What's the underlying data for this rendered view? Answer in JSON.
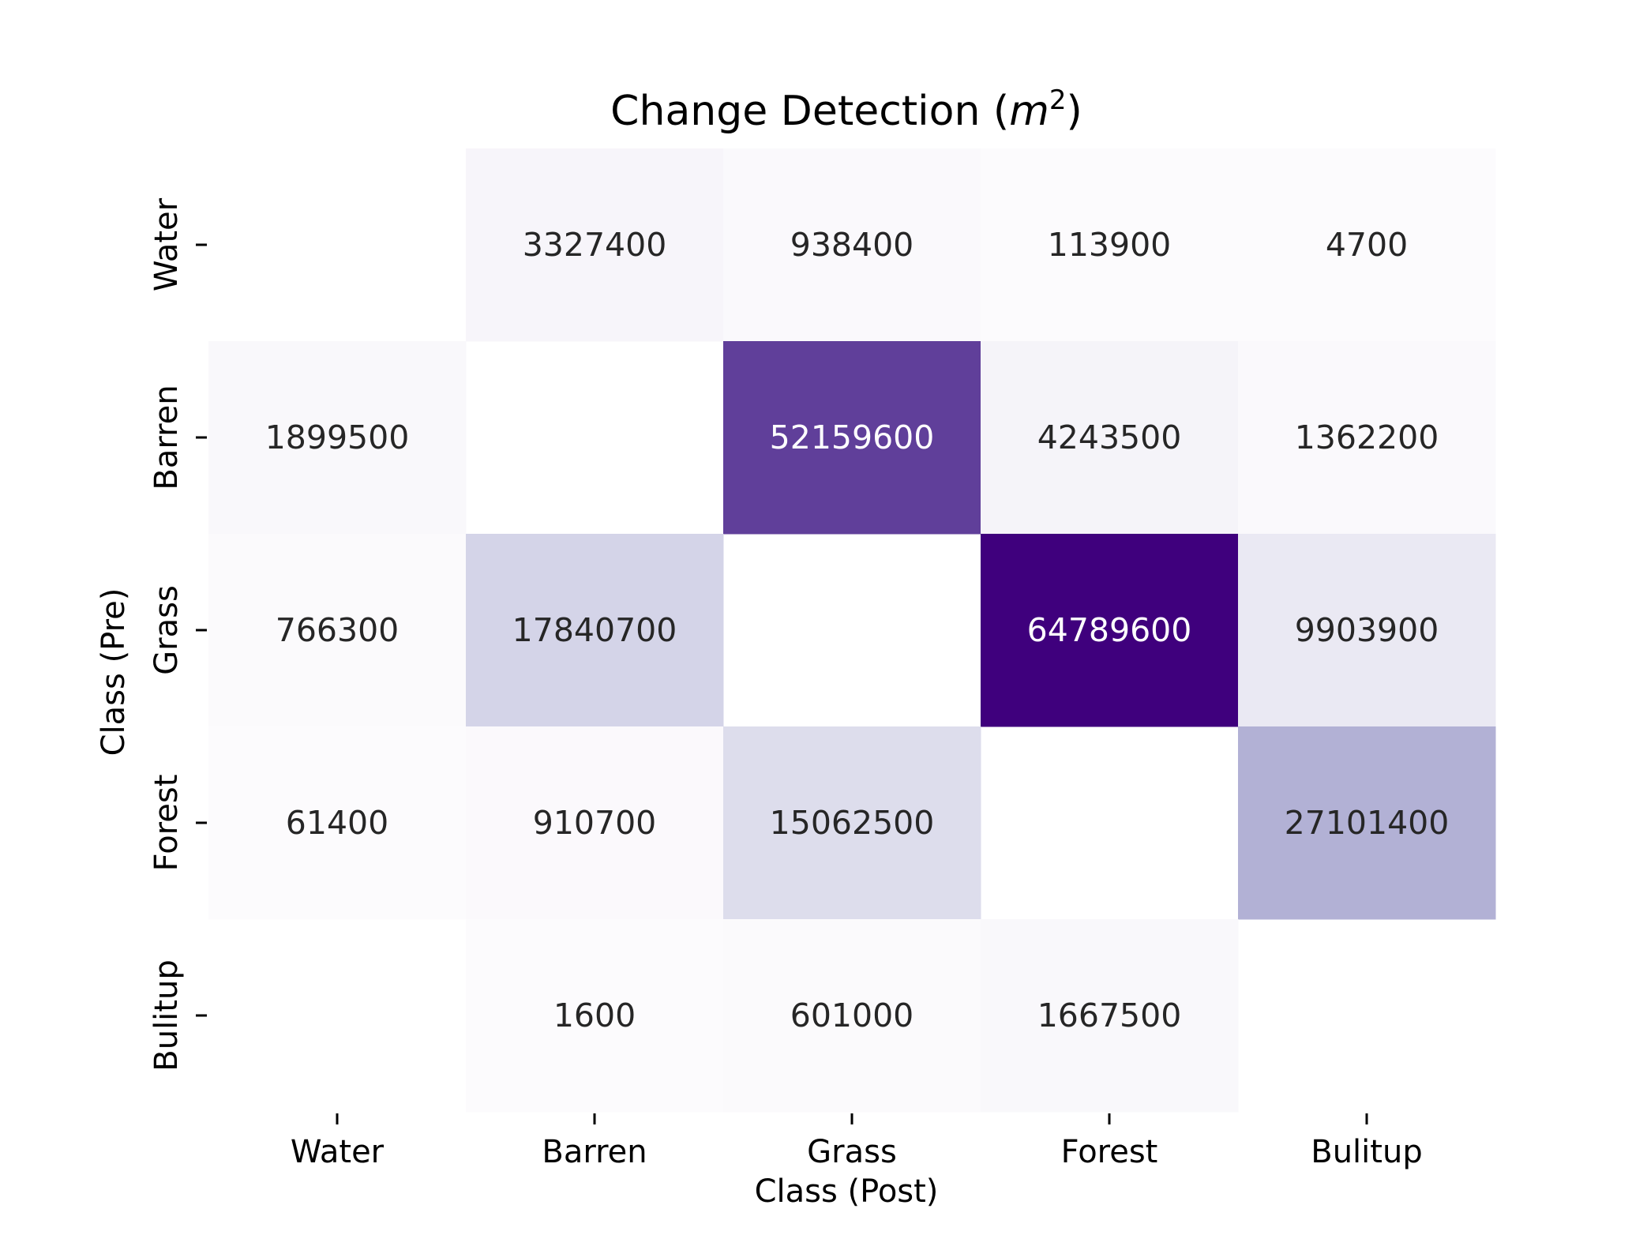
{
  "chart_data": {
    "type": "heatmap",
    "title": "Change Detection (m²)",
    "title_parts": {
      "prefix": "Change Detection (",
      "var": "m",
      "sup": "2",
      "suffix": ")"
    },
    "xlabel": "Class (Post)",
    "ylabel": "Class (Pre)",
    "x_categories": [
      "Water",
      "Barren",
      "Grass",
      "Forest",
      "Bulitup"
    ],
    "y_categories": [
      "Water",
      "Barren",
      "Grass",
      "Forest",
      "Bulitup"
    ],
    "values": [
      [
        null,
        3327400,
        938400,
        113900,
        4700
      ],
      [
        1899500,
        null,
        52159600,
        4243500,
        1362200
      ],
      [
        766300,
        17840700,
        null,
        64789600,
        9903900
      ],
      [
        61400,
        910700,
        15062500,
        null,
        27101400
      ],
      [
        null,
        1600,
        601000,
        1667500,
        null
      ]
    ],
    "colormap": "Purples",
    "colormap_stops": [
      "#fcfbfd",
      "#efedf5",
      "#dadaeb",
      "#bcbddc",
      "#9e9ac8",
      "#807dba",
      "#6a51a3",
      "#54278f",
      "#3f007d"
    ],
    "text_color_dark": "#262626",
    "text_color_light": "#ffffff",
    "grid": false,
    "colorbar": false
  }
}
